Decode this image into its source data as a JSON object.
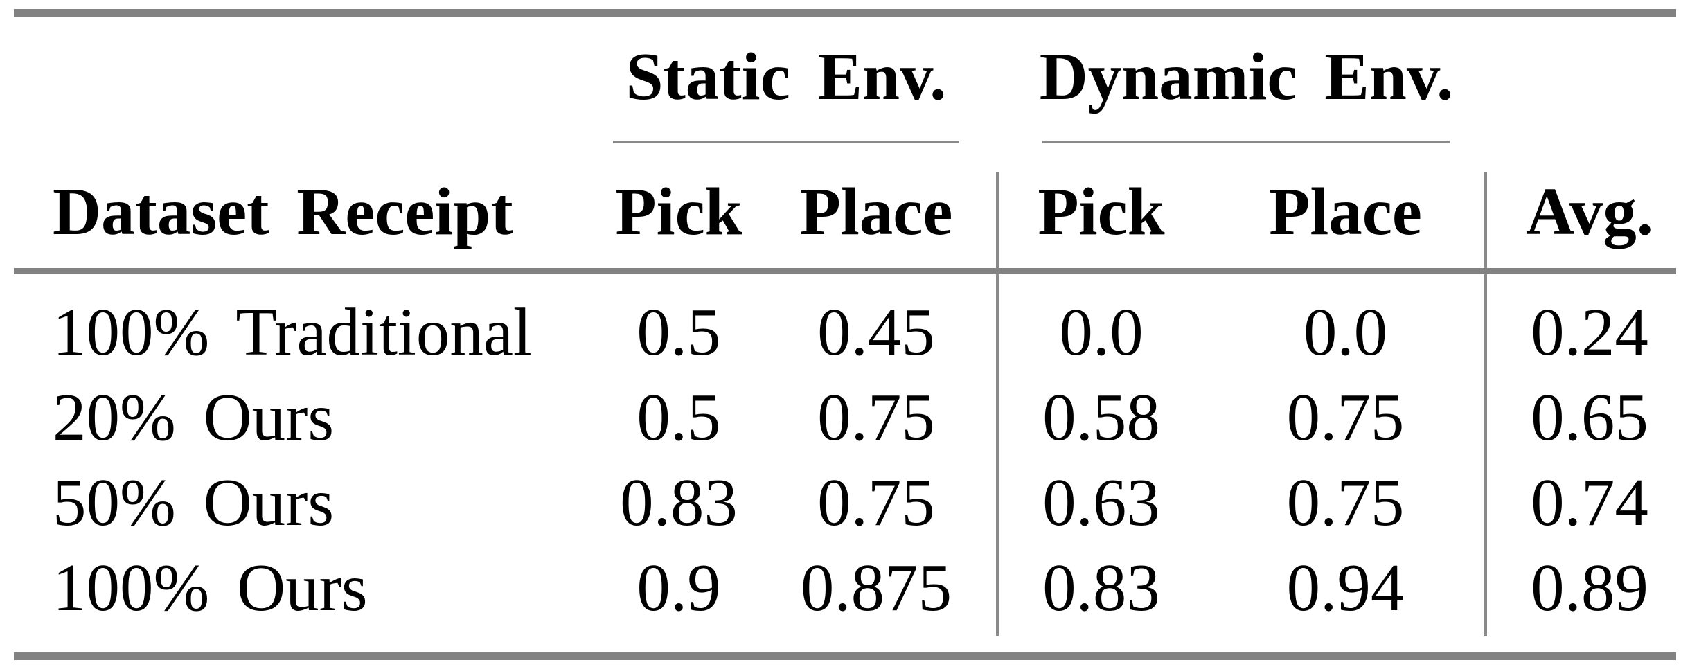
{
  "table": {
    "group_headers": [
      "Static Env.",
      "Dynamic Env."
    ],
    "columns": [
      "Dataset Receipt",
      "Pick",
      "Place",
      "Pick",
      "Place",
      "Avg."
    ],
    "rows": [
      {
        "label": "100% Traditional",
        "values": [
          "0.5",
          "0.45",
          "0.0",
          "0.0",
          "0.24"
        ]
      },
      {
        "label": "20% Ours",
        "values": [
          "0.5",
          "0.75",
          "0.58",
          "0.75",
          "0.65"
        ]
      },
      {
        "label": "50% Ours",
        "values": [
          "0.83",
          "0.75",
          "0.63",
          "0.75",
          "0.74"
        ]
      },
      {
        "label": "100% Ours",
        "values": [
          "0.9",
          "0.875",
          "0.83",
          "0.94",
          "0.89"
        ]
      }
    ]
  },
  "colors": {
    "rule_gray": "#828282",
    "divider_gray": "#8a8a8a",
    "text": "#000000",
    "background": "#ffffff"
  },
  "chart_data": {
    "type": "table",
    "title": "",
    "column_groups": [
      {
        "label": "Static Env.",
        "columns": [
          "Pick",
          "Place"
        ]
      },
      {
        "label": "Dynamic Env.",
        "columns": [
          "Pick",
          "Place"
        ]
      }
    ],
    "columns": [
      "Dataset Receipt",
      "Static Pick",
      "Static Place",
      "Dynamic Pick",
      "Dynamic Place",
      "Avg."
    ],
    "rows": [
      [
        "100% Traditional",
        0.5,
        0.45,
        0.0,
        0.0,
        0.24
      ],
      [
        "20% Ours",
        0.5,
        0.75,
        0.58,
        0.75,
        0.65
      ],
      [
        "50% Ours",
        0.83,
        0.75,
        0.63,
        0.75,
        0.74
      ],
      [
        "100% Ours",
        0.9,
        0.875,
        0.83,
        0.94,
        0.89
      ]
    ]
  }
}
